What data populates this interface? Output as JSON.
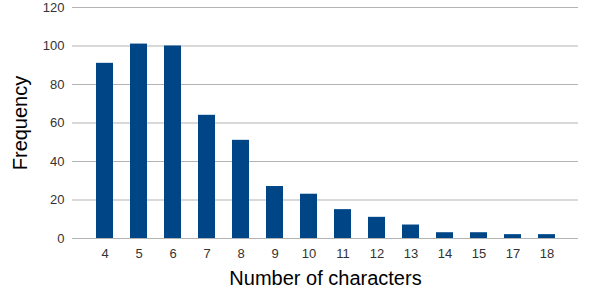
{
  "chart_data": {
    "type": "bar",
    "xlabel": "Number of characters",
    "ylabel": "Frequency",
    "categories": [
      "4",
      "5",
      "6",
      "7",
      "8",
      "9",
      "10",
      "11",
      "12",
      "13",
      "14",
      "15",
      "17",
      "18"
    ],
    "values": [
      91,
      101,
      100,
      64,
      51,
      27,
      23,
      15,
      11,
      7,
      3,
      3,
      2,
      2
    ],
    "color": "#004586",
    "ylim": [
      0,
      120
    ],
    "yticks": [
      0,
      20,
      40,
      60,
      80,
      100,
      120
    ],
    "grid": true
  }
}
